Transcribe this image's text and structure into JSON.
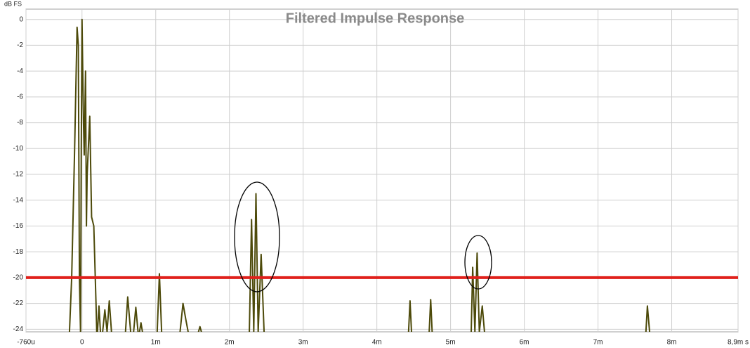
{
  "chart_data": {
    "type": "line",
    "title": "Filtered Impulse Response",
    "ylabel": "dB FS",
    "xlim": [
      -0.76,
      8.9
    ],
    "ylim": [
      -24.2,
      0.8
    ],
    "xticks": [
      {
        "value": -0.76,
        "label": "-760u"
      },
      0,
      {
        "value": 1,
        "label": "1m"
      },
      {
        "value": 2,
        "label": "2m"
      },
      {
        "value": 3,
        "label": "3m"
      },
      {
        "value": 4,
        "label": "4m"
      },
      {
        "value": 5,
        "label": "5m"
      },
      {
        "value": 6,
        "label": "6m"
      },
      {
        "value": 7,
        "label": "7m"
      },
      {
        "value": 8,
        "label": "8m"
      },
      {
        "value": 8.9,
        "label": "8,9m s"
      }
    ],
    "yticks": [
      0,
      -2,
      -4,
      -6,
      -8,
      -10,
      -12,
      -14,
      -16,
      -18,
      -20,
      -22,
      -24
    ],
    "grid": true,
    "reference_line": {
      "value": -20,
      "color": "#e0201b"
    },
    "series": [
      {
        "color": "#4d4a0a",
        "x": [
          -0.17,
          -0.14,
          -0.1,
          -0.067,
          -0.05,
          -0.035,
          -0.02,
          -0.01,
          0,
          0.02,
          0.03,
          0.048,
          0.06,
          0.07,
          0.105,
          0.13,
          0.16,
          0.19,
          0.2,
          null,
          0.21,
          0.23,
          0.25,
          null,
          0.28,
          0.31,
          0.34,
          0.37,
          0.4,
          null,
          0.59,
          0.62,
          0.66,
          null,
          0.7,
          0.73,
          0.76,
          null,
          0.78,
          0.8,
          0.82,
          null,
          1.02,
          1.05,
          1.08,
          null,
          1.33,
          1.37,
          1.41,
          1.44,
          null,
          1.58,
          1.6,
          1.62,
          null,
          2.27,
          2.3,
          2.33,
          2.36,
          2.39,
          2.43,
          2.47,
          null,
          4.43,
          4.45,
          4.47,
          null,
          4.71,
          4.73,
          4.75,
          null,
          5.28,
          5.3,
          5.33,
          5.36,
          5.39,
          5.43,
          5.46,
          null,
          7.65,
          7.67,
          7.7
        ],
        "values": [
          -24.2,
          -20,
          -10,
          -0.6,
          -2,
          -20,
          -24.2,
          -10,
          0,
          -8,
          -10.5,
          -4,
          -16,
          -12,
          -7.5,
          -15.3,
          -16,
          -22,
          -24.2,
          null,
          -24.2,
          -22.2,
          -24.2,
          null,
          -24.2,
          -22.5,
          -24.2,
          -21.8,
          -24.2,
          null,
          -24.2,
          -21.5,
          -24.2,
          null,
          -24.2,
          -22.3,
          -24.2,
          null,
          -24.2,
          -23.5,
          -24.2,
          null,
          -24.2,
          -19.7,
          -24.2,
          null,
          -24.2,
          -22,
          -23.3,
          -24.2,
          null,
          -24.2,
          -23.8,
          -24.2,
          null,
          -24.2,
          -15.5,
          -24.2,
          -13.5,
          -24.2,
          -18.2,
          -24.2,
          null,
          -24.2,
          -21.8,
          -24.2,
          null,
          -24.2,
          -21.7,
          -24.2,
          null,
          -24.2,
          -19.2,
          -24.2,
          -18.1,
          -24.2,
          -22.2,
          -24.2,
          null,
          -24.2,
          -22.2,
          -24.2
        ]
      }
    ]
  }
}
